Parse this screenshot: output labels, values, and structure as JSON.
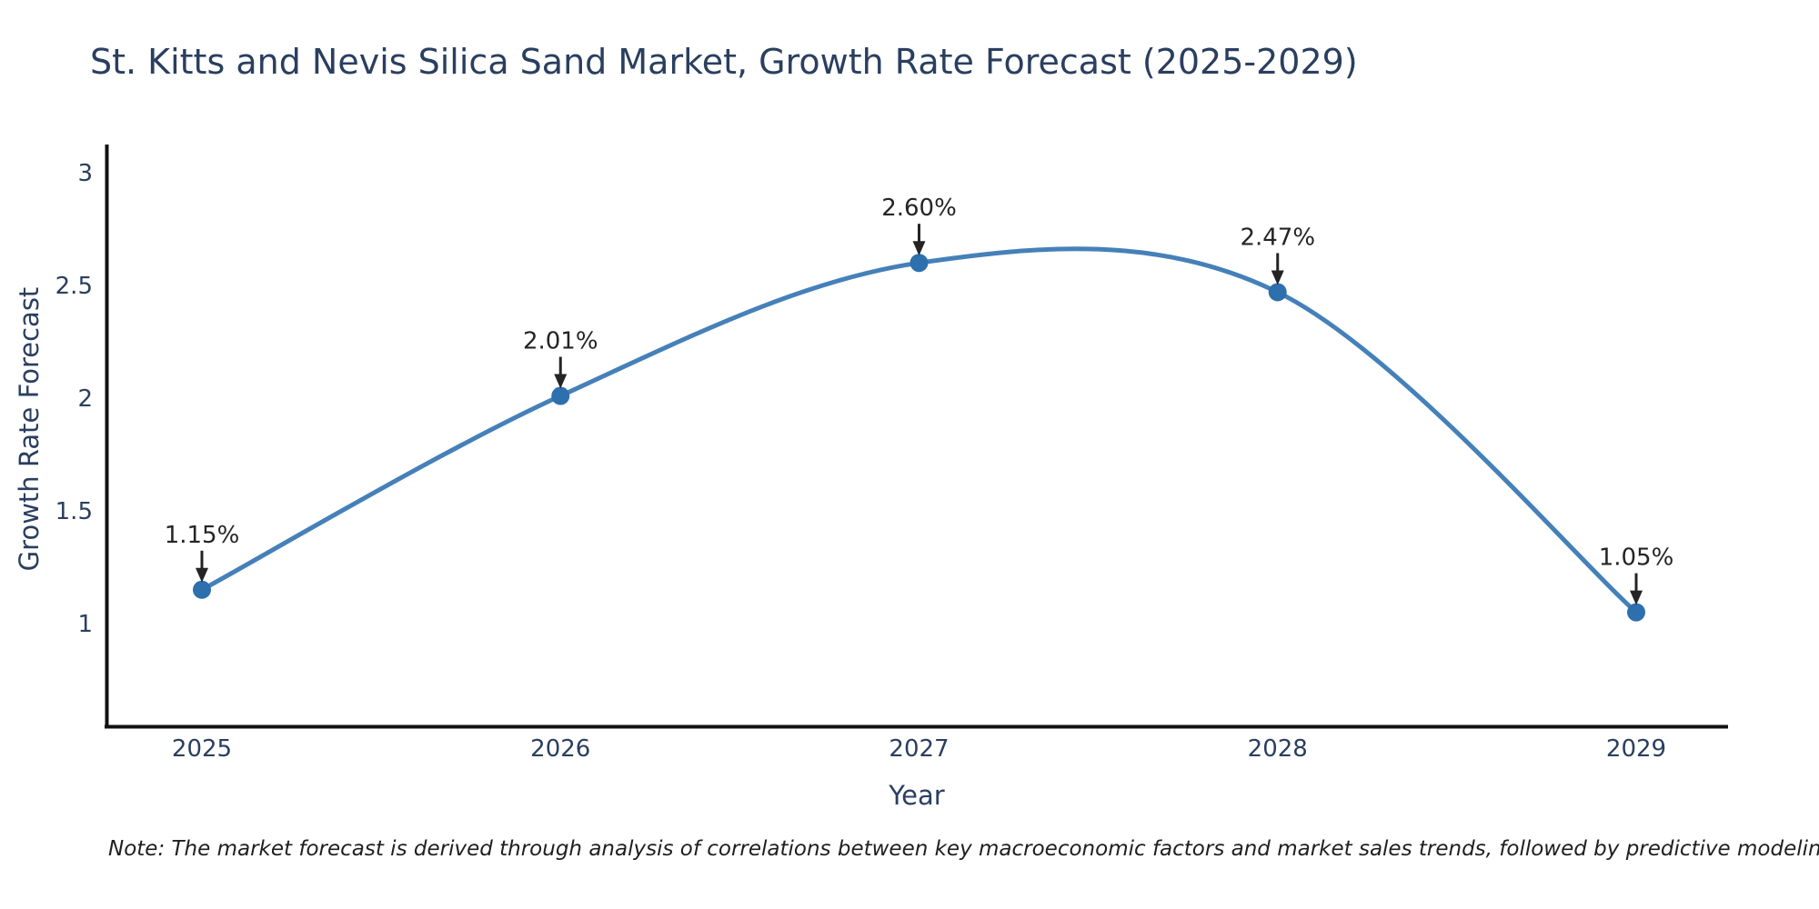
{
  "note": "Note: The market forecast is derived through analysis of correlations between key macroeconomic factors and market sales trends, followed by predictive modeling to project future sales",
  "chart_data": {
    "type": "line",
    "title": "St. Kitts and Nevis Silica Sand Market, Growth Rate Forecast (2025-2029)",
    "xlabel": "Year",
    "ylabel": "Growth Rate Forecast",
    "categories": [
      "2025",
      "2026",
      "2027",
      "2028",
      "2029"
    ],
    "values": [
      1.15,
      2.01,
      2.6,
      2.47,
      1.05
    ],
    "point_labels": [
      "1.15%",
      "2.01%",
      "2.60%",
      "2.47%",
      "1.05%"
    ],
    "yticks": [
      1,
      1.5,
      2,
      2.5,
      3
    ],
    "ytick_labels": [
      "1",
      "1.5",
      "2",
      "2.5",
      "3"
    ],
    "ylim": [
      0.54,
      3.13
    ],
    "line_shape": "spline",
    "grid": false,
    "legend": false,
    "annotations_arrow": "down-to-point",
    "colors": {
      "line": "#4580b9",
      "marker": "#2e6fae",
      "axis": "#111111",
      "axis_text": "#2a3f5f",
      "annotation": "#242424",
      "background": "#ffffff"
    }
  }
}
